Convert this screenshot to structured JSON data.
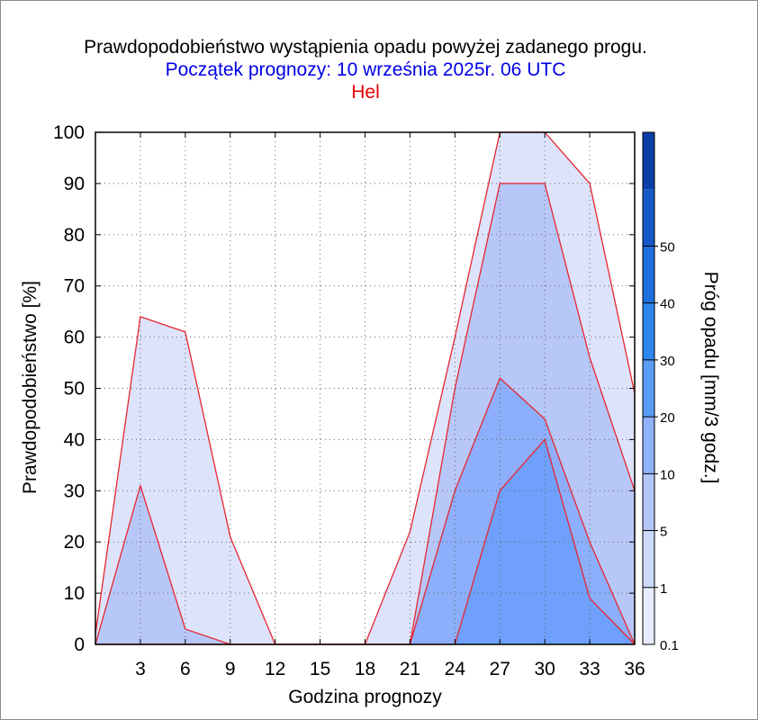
{
  "chart_data": {
    "type": "area",
    "title": "Prawdopodobieństwo wystąpienia opadu powyżej zadanego progu.",
    "subtitle": "Początek prognozy: 10 września 2025r. 06 UTC",
    "location": "Hel",
    "xlabel": "Godzina prognozy",
    "ylabel": "Prawdopodobieństwo [%]",
    "xlim": [
      0,
      36
    ],
    "ylim": [
      0,
      100
    ],
    "x_ticks": [
      3,
      6,
      9,
      12,
      15,
      18,
      21,
      24,
      27,
      30,
      33,
      36
    ],
    "y_ticks": [
      0,
      10,
      20,
      30,
      40,
      50,
      60,
      70,
      80,
      90,
      100
    ],
    "grid": true,
    "x": [
      0,
      3,
      6,
      9,
      12,
      15,
      18,
      21,
      24,
      27,
      30,
      33,
      36
    ],
    "series": [
      {
        "threshold": "0.1",
        "color": "#dde3fb",
        "values": [
          2,
          64,
          61,
          21,
          0,
          0,
          0,
          22,
          60,
          100,
          100,
          90,
          49
        ]
      },
      {
        "threshold": "1",
        "color": "#b7c8f8",
        "values": [
          0,
          31,
          3,
          0,
          0,
          0,
          0,
          0,
          50,
          90,
          90,
          56,
          30
        ]
      },
      {
        "threshold": "5",
        "color": "#8daefa",
        "values": [
          0,
          0,
          0,
          0,
          0,
          0,
          0,
          0,
          30,
          52,
          44,
          20,
          0
        ]
      },
      {
        "threshold": "10",
        "color": "#6fa0fb",
        "values": [
          0,
          0,
          0,
          0,
          0,
          0,
          0,
          0,
          0,
          30,
          40,
          9,
          0
        ]
      }
    ],
    "colorbar": {
      "label": "Próg opadu [mm/3 godz.]",
      "levels": [
        "0.1",
        "1",
        "5",
        "10",
        "20",
        "30",
        "40",
        "50"
      ],
      "colors": [
        "#e6ebfd",
        "#ccd9fb",
        "#b2c6f9",
        "#8fb2fb",
        "#5a9df5",
        "#2d88ee",
        "#1f6fdd",
        "#1559c8",
        "#0a3fa8"
      ]
    }
  }
}
